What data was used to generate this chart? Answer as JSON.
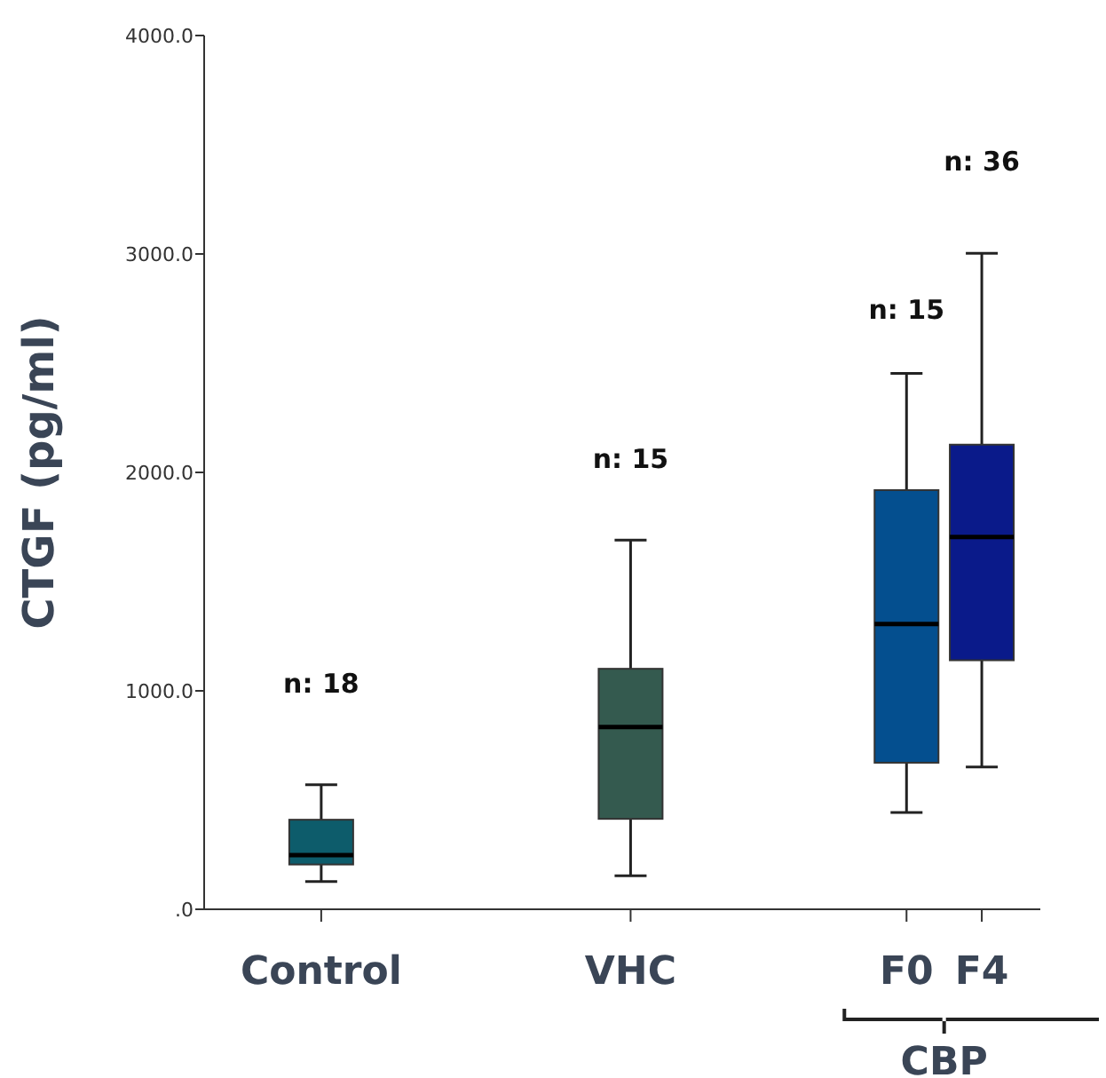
{
  "chart_data": {
    "type": "box",
    "ylabel": "CTGF (pg/ml)",
    "categories": [
      "Control",
      "VHC",
      "F0",
      "F4"
    ],
    "colors": [
      "#0d5c6b",
      "#345a4f",
      "#044f8f",
      "#0a1a8a"
    ],
    "boxes": [
      {
        "low": 127,
        "q1": 205,
        "median": 248,
        "q3": 410,
        "high": 570
      },
      {
        "low": 153,
        "q1": 414,
        "median": 834,
        "q3": 1101,
        "high": 1690
      },
      {
        "low": 443,
        "q1": 671,
        "median": 1306,
        "q3": 1919,
        "high": 2453
      },
      {
        "low": 651,
        "q1": 1140,
        "median": 1704,
        "q3": 2127,
        "high": 3003
      }
    ],
    "ylim": [
      0,
      4000
    ],
    "yticks": [
      {
        "value": 0,
        "label": ".0"
      },
      {
        "value": 1000,
        "label": "1000.0"
      },
      {
        "value": 2000,
        "label": "2000.0"
      },
      {
        "value": 3000,
        "label": "3000.0"
      },
      {
        "value": 4000,
        "label": "4000.0"
      }
    ],
    "annotations": [
      "n: 18",
      "n: 15",
      "n: 15",
      "n: 36",
      "CBP"
    ]
  }
}
